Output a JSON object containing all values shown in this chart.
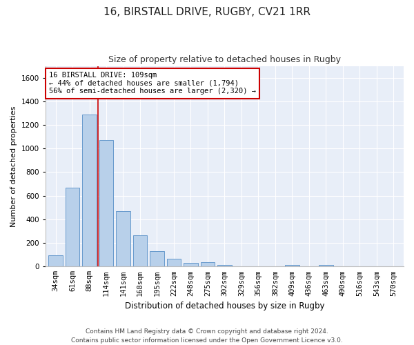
{
  "title1": "16, BIRSTALL DRIVE, RUGBY, CV21 1RR",
  "title2": "Size of property relative to detached houses in Rugby",
  "xlabel": "Distribution of detached houses by size in Rugby",
  "ylabel": "Number of detached properties",
  "categories": [
    "34sqm",
    "61sqm",
    "88sqm",
    "114sqm",
    "141sqm",
    "168sqm",
    "195sqm",
    "222sqm",
    "248sqm",
    "275sqm",
    "302sqm",
    "329sqm",
    "356sqm",
    "382sqm",
    "409sqm",
    "436sqm",
    "463sqm",
    "490sqm",
    "516sqm",
    "543sqm",
    "570sqm"
  ],
  "values": [
    97,
    670,
    1290,
    1070,
    470,
    265,
    128,
    67,
    33,
    35,
    14,
    0,
    0,
    0,
    14,
    0,
    14,
    0,
    0,
    0,
    0
  ],
  "bar_color": "#b8d0ea",
  "bar_edge_color": "#6699cc",
  "property_line_x": 2.5,
  "annotation_text": "16 BIRSTALL DRIVE: 109sqm\n← 44% of detached houses are smaller (1,794)\n56% of semi-detached houses are larger (2,320) →",
  "annotation_box_color": "#ffffff",
  "annotation_box_edge": "#cc0000",
  "ylim": [
    0,
    1700
  ],
  "yticks": [
    0,
    200,
    400,
    600,
    800,
    1000,
    1200,
    1400,
    1600
  ],
  "footer": "Contains HM Land Registry data © Crown copyright and database right 2024.\nContains public sector information licensed under the Open Government Licence v3.0.",
  "fig_bg_color": "#ffffff",
  "plot_bg_color": "#e8eef8",
  "grid_color": "#ffffff",
  "title1_fontsize": 11,
  "title2_fontsize": 9,
  "xlabel_fontsize": 8.5,
  "ylabel_fontsize": 8,
  "tick_fontsize": 7.5,
  "footer_fontsize": 6.5,
  "annot_fontsize": 7.5
}
